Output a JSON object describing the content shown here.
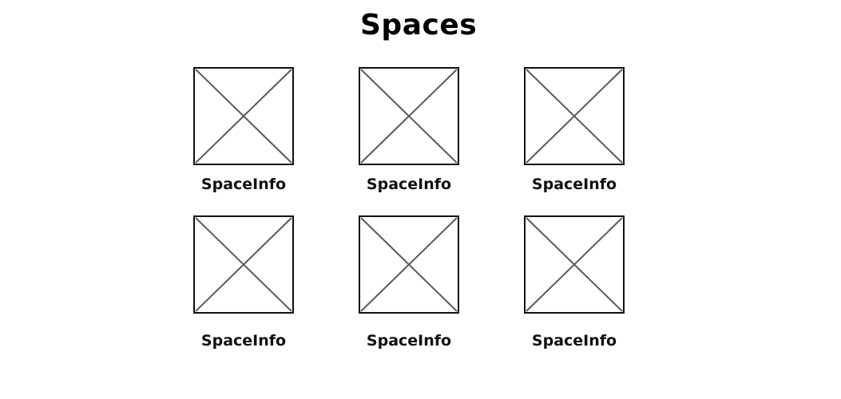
{
  "header": {
    "title": "Spaces"
  },
  "spaces": [
    {
      "label": "SpaceInfo",
      "icon": "image-placeholder-icon"
    },
    {
      "label": "SpaceInfo",
      "icon": "image-placeholder-icon"
    },
    {
      "label": "SpaceInfo",
      "icon": "image-placeholder-icon"
    },
    {
      "label": "SpaceInfo",
      "icon": "image-placeholder-icon"
    },
    {
      "label": "SpaceInfo",
      "icon": "image-placeholder-icon"
    },
    {
      "label": "SpaceInfo",
      "icon": "image-placeholder-icon"
    }
  ],
  "colors": {
    "frame": "#111111",
    "cross": "#5a5a5a",
    "background": "#ffffff"
  }
}
